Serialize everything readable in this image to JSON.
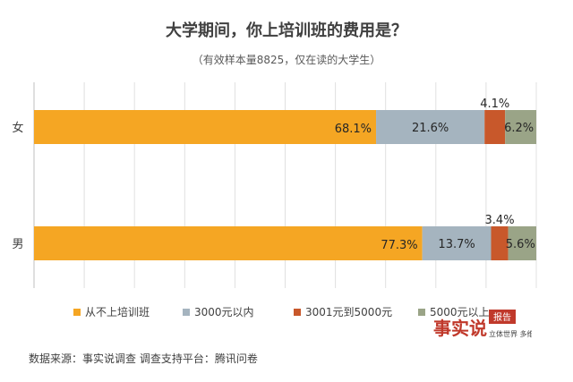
{
  "chart_data": {
    "type": "bar",
    "orientation": "horizontal",
    "stacked": true,
    "title": "大学期间，你上培训班的费用是？",
    "subtitle": "（有效样本量8825，仅在读的大学生）",
    "categories": [
      "女",
      "男"
    ],
    "series": [
      {
        "name": "从不上培训班",
        "color": "#F5A623",
        "values": [
          68.1,
          77.3
        ],
        "labels": [
          "68.1%",
          "77.3%"
        ]
      },
      {
        "name": "3000元以内",
        "color": "#A5B4BF",
        "values": [
          21.6,
          13.7
        ],
        "labels": [
          "21.6%",
          "13.7%"
        ]
      },
      {
        "name": "3001元到5000元",
        "color": "#C8582B",
        "values": [
          4.1,
          3.4
        ],
        "labels": [
          "4.1%",
          "3.4%"
        ]
      },
      {
        "name": "5000元以上",
        "color": "#9AA487",
        "values": [
          6.2,
          5.6
        ],
        "labels": [
          "6.2%",
          "5.6%"
        ]
      }
    ],
    "xlim": [
      0,
      100
    ],
    "legend_position": "bottom",
    "grid": true
  },
  "source_text": "数据来源：事实说调查    调查支持平台：腾讯问卷",
  "logo": {
    "main": "事实说",
    "badge": "报告",
    "tagline": "立体世界 多维选择"
  }
}
